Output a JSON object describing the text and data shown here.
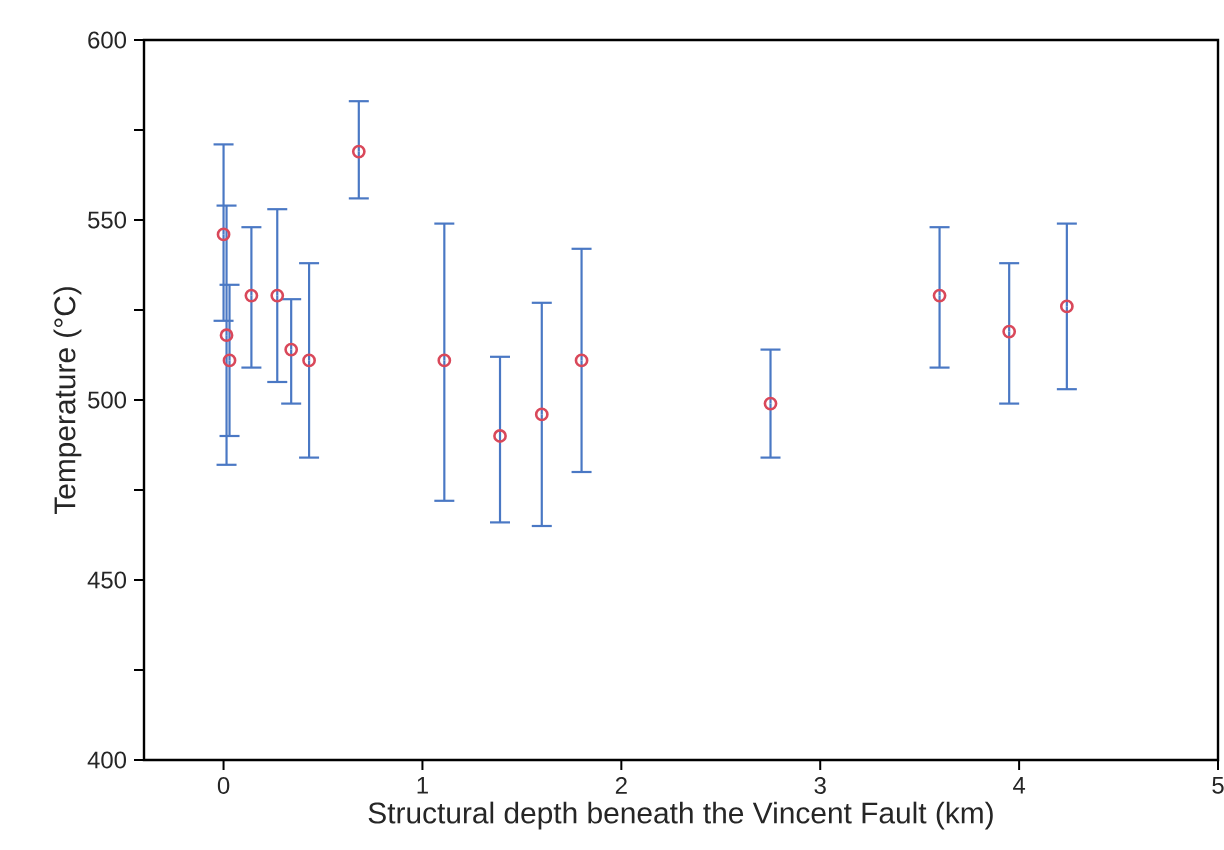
{
  "chart_data": {
    "type": "scatter",
    "xlabel": "Structural depth beneath the Vincent Fault (km)",
    "ylabel": "Temperature (°C)",
    "x": [
      0,
      0.015,
      0.03,
      0.14,
      0.27,
      0.34,
      0.43,
      0.68,
      1.11,
      1.39,
      1.6,
      1.8,
      2.75,
      3.6,
      3.95,
      4.24
    ],
    "values": [
      546,
      518,
      511,
      529,
      529,
      514,
      511,
      569,
      511,
      490,
      496,
      511,
      499,
      529,
      519,
      526
    ],
    "errors": [
      [
        522,
        571
      ],
      [
        482,
        554
      ],
      [
        490,
        532
      ],
      [
        509,
        548
      ],
      [
        505,
        553
      ],
      [
        499,
        528
      ],
      [
        484,
        538
      ],
      [
        556,
        583
      ],
      [
        472,
        549
      ],
      [
        466,
        512
      ],
      [
        465,
        527
      ],
      [
        480,
        542
      ],
      [
        484,
        514
      ],
      [
        509,
        548
      ],
      [
        499,
        538
      ],
      [
        503,
        549
      ]
    ],
    "color": "#d9485a",
    "marker": "circle",
    "xlim": [
      -0.4,
      5
    ],
    "ylim": [
      400,
      600
    ],
    "xticks": [
      0,
      1,
      2,
      3,
      4,
      5
    ],
    "yticks": [
      400,
      {
        "value": 425,
        "label": null
      },
      450,
      {
        "value": 475,
        "label": null
      },
      500,
      {
        "value": 525,
        "label": null
      },
      550,
      {
        "value": 575,
        "label": null
      },
      600
    ]
  }
}
